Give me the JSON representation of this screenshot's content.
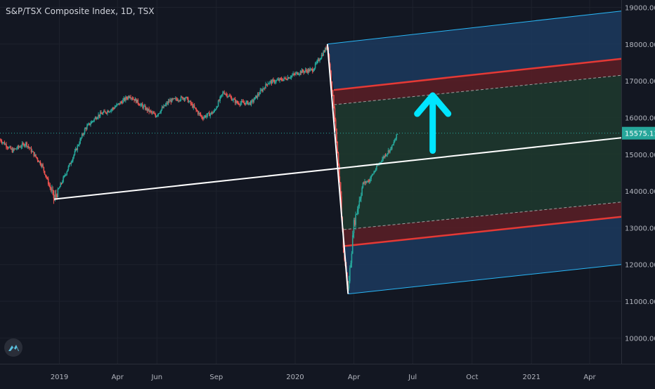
{
  "header": {
    "title": "S&P/TSX Composite Index, 1D, TSX"
  },
  "colors": {
    "background": "#131722",
    "grid": "#1e222d",
    "axis_text": "#b2b5be",
    "candle_up": "#26a69a",
    "candle_down": "#ef5350",
    "channel_outer_fill": "#1c3a5e",
    "channel_inner_fill": "#1f3a2e",
    "channel_band_fill": "#5c1f26",
    "channel_outer_line": "#29b6f6",
    "channel_red_line": "#e53935",
    "median_line": "#ffffff",
    "arrow": "#00e5ff",
    "price_tag": "#26a69a"
  },
  "chart_data": {
    "type": "candlestick",
    "title": "S&P/TSX Composite Index, 1D, TSX",
    "x_tick_labels": [
      "2019",
      "Apr",
      "Jun",
      "Sep",
      "2020",
      "Apr",
      "Jul",
      "Oct",
      "2021",
      "Apr"
    ],
    "x_ticks": [
      "2019-01-01",
      "2019-04-01",
      "2019-06-01",
      "2019-09-01",
      "2020-01-01",
      "2020-04-01",
      "2020-07-01",
      "2020-10-01",
      "2021-01-01",
      "2021-04-01"
    ],
    "y_tick_labels": [
      "10000.00",
      "11000.00",
      "12000.00",
      "13000.00",
      "14000.00",
      "15000.00",
      "16000.00",
      "17000.00",
      "18000.00",
      "19000.00"
    ],
    "ylim": [
      9300,
      19200
    ],
    "xlim": [
      "2018-10-01",
      "2021-05-20"
    ],
    "last_price": "15575.11",
    "series": [
      {
        "type": "ohlc-path",
        "points": [
          [
            "2018-10-01",
            15400
          ],
          [
            "2018-10-20",
            15100
          ],
          [
            "2018-11-10",
            15300
          ],
          [
            "2018-12-05",
            14700
          ],
          [
            "2018-12-24",
            13780
          ],
          [
            "2019-01-15",
            14650
          ],
          [
            "2019-02-10",
            15700
          ],
          [
            "2019-03-01",
            16050
          ],
          [
            "2019-03-25",
            16250
          ],
          [
            "2019-04-20",
            16600
          ],
          [
            "2019-05-10",
            16300
          ],
          [
            "2019-05-30",
            16050
          ],
          [
            "2019-06-20",
            16450
          ],
          [
            "2019-07-15",
            16550
          ],
          [
            "2019-08-10",
            16000
          ],
          [
            "2019-08-28",
            16150
          ],
          [
            "2019-09-12",
            16700
          ],
          [
            "2019-10-03",
            16400
          ],
          [
            "2019-10-25",
            16400
          ],
          [
            "2019-11-20",
            16950
          ],
          [
            "2019-12-15",
            17050
          ],
          [
            "2020-01-10",
            17250
          ],
          [
            "2020-01-28",
            17300
          ],
          [
            "2020-02-20",
            17950
          ],
          [
            "2020-03-01",
            16300
          ],
          [
            "2020-03-10",
            14200
          ],
          [
            "2020-03-16",
            12400
          ],
          [
            "2020-03-23",
            11300
          ],
          [
            "2020-04-01",
            13100
          ],
          [
            "2020-04-15",
            14200
          ],
          [
            "2020-04-25",
            14300
          ],
          [
            "2020-05-08",
            14700
          ],
          [
            "2020-05-20",
            15000
          ],
          [
            "2020-05-30",
            15200
          ],
          [
            "2020-06-08",
            15575
          ]
        ]
      }
    ],
    "annotations": {
      "channel_outer_upper": [
        [
          "2020-02-20",
          18000
        ],
        [
          "2021-05-20",
          18900
        ]
      ],
      "channel_outer_lower": [
        [
          "2020-03-23",
          11200
        ],
        [
          "2021-05-20",
          12000
        ]
      ],
      "channel_red_upper": [
        [
          "2020-03-01",
          16750
        ],
        [
          "2021-05-20",
          17600
        ]
      ],
      "channel_red_upper_dash": [
        [
          "2020-03-01",
          16350
        ],
        [
          "2021-05-20",
          17150
        ]
      ],
      "channel_red_lower": [
        [
          "2020-03-16",
          12500
        ],
        [
          "2021-05-20",
          13300
        ]
      ],
      "channel_red_lower_dash": [
        [
          "2020-03-16",
          12950
        ],
        [
          "2021-05-20",
          13700
        ]
      ],
      "median_line": [
        [
          "2018-12-24",
          13780
        ],
        [
          "2021-05-20",
          15450
        ]
      ],
      "pitch_handle": [
        [
          "2020-02-20",
          18000
        ],
        [
          "2020-03-23",
          11200
        ]
      ],
      "arrow": {
        "x": "2020-08-01",
        "y_from": 15100,
        "y_to": 16600
      },
      "last_price_line": 15575.11
    }
  }
}
